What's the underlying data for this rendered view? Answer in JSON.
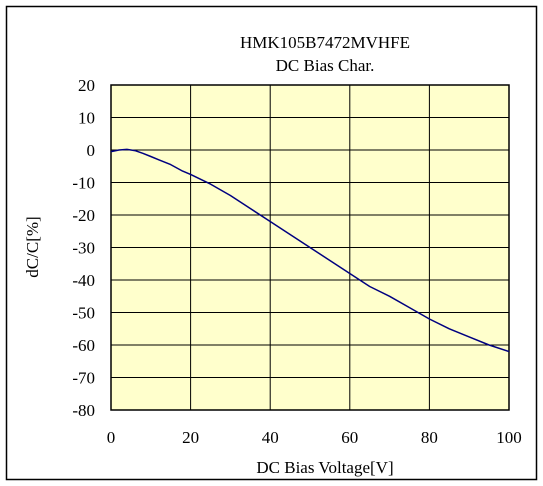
{
  "chart_data": {
    "type": "line",
    "title": "HMK105B7472MVHFE",
    "subtitle": "DC Bias Char.",
    "xlabel": "DC Bias Voltage[V]",
    "ylabel": "dC/C[%]",
    "xlim": [
      0,
      100
    ],
    "ylim": [
      -80,
      20
    ],
    "x_ticks": [
      0,
      20,
      40,
      60,
      80,
      100
    ],
    "y_ticks": [
      20,
      10,
      0,
      -10,
      -20,
      -30,
      -40,
      -50,
      -60,
      -70,
      -80
    ],
    "x_tick_labels": [
      "0",
      "20",
      "40",
      "60",
      "80",
      "100"
    ],
    "y_tick_labels": [
      "20",
      "10",
      "0",
      "-10",
      "-20",
      "-30",
      "-40",
      "-50",
      "-60",
      "-70",
      "-80"
    ],
    "grid": true,
    "legend": "none",
    "colors": {
      "plot_background": "#FFFFCC",
      "line": "#000080",
      "grid": "#000000"
    },
    "series": [
      {
        "x": [
          0,
          2,
          4,
          6,
          8,
          10,
          12,
          15,
          18,
          20,
          25,
          30,
          35,
          40,
          45,
          50,
          55,
          60,
          65,
          70,
          75,
          80,
          85,
          90,
          95,
          100
        ],
        "values": [
          -0.5,
          0,
          0.2,
          -0.2,
          -1,
          -2,
          -3,
          -4.5,
          -6.5,
          -7.5,
          -10.5,
          -14,
          -18,
          -22,
          -26,
          -30,
          -34,
          -38,
          -42,
          -45,
          -48.5,
          -52,
          -55,
          -57.5,
          -60,
          -62
        ]
      }
    ]
  }
}
